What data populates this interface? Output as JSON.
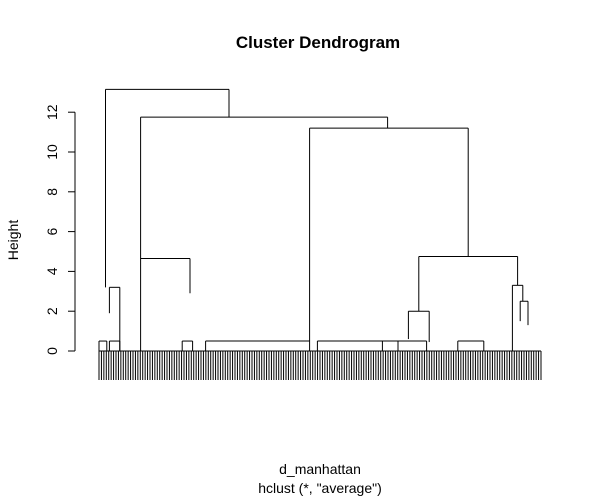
{
  "chart_data": {
    "type": "dendrogram",
    "title": "Cluster Dendrogram",
    "ylabel": "Height",
    "xlabel": "d_manhattan",
    "sublabel": "hclust (*, \"average\")",
    "ylim": [
      0,
      13.2
    ],
    "yticks": [
      0,
      2,
      4,
      6,
      8,
      10,
      12
    ],
    "leaf_count": 183,
    "merges": [
      {
        "left": 0.25,
        "right": 5.0,
        "height": 13.15,
        "left_height": 3.2,
        "right_height": 11.75
      },
      {
        "left": 0.4,
        "right": 0.8,
        "height": 3.2,
        "left_height": 1.9,
        "right_height": 0
      },
      {
        "left": 1.6,
        "right": 11.1,
        "height": 11.75,
        "left_height": 4.65,
        "right_height": 11.2
      },
      {
        "left": 1.6,
        "right": 3.5,
        "height": 4.65,
        "left_height": 0,
        "right_height": 2.9
      },
      {
        "left": 8.1,
        "right": 14.2,
        "height": 11.2,
        "left_height": 0.5,
        "right_height": 4.75
      },
      {
        "left": 12.3,
        "right": 16.1,
        "height": 4.75,
        "left_height": 2.0,
        "right_height": 3.3
      },
      {
        "left": 11.9,
        "right": 12.7,
        "height": 2.0,
        "left_height": 0.6,
        "right_height": 0.45
      },
      {
        "left": 15.9,
        "right": 16.3,
        "height": 3.3,
        "left_height": 0,
        "right_height": 2.5
      },
      {
        "left": 16.2,
        "right": 16.5,
        "height": 2.5,
        "left_height": 1.5,
        "right_height": 1.3
      }
    ]
  }
}
